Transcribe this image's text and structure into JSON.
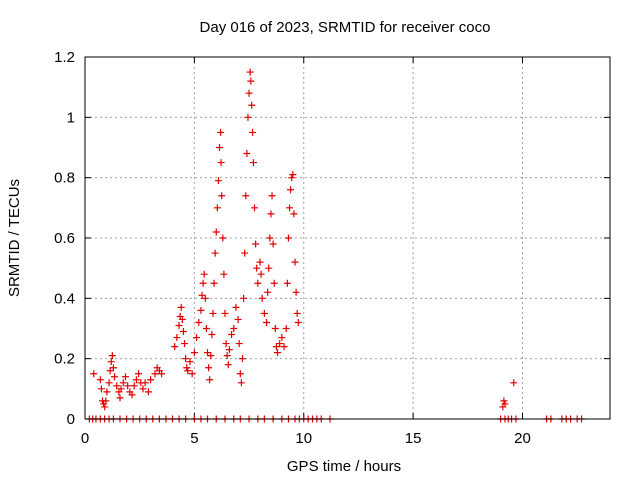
{
  "chart_data": {
    "type": "scatter",
    "title": "Day 016 of 2023, SRMTID for receiver coco",
    "xlabel": "GPS time / hours",
    "ylabel": "SRMTID / TECUs",
    "xlim": [
      0,
      24
    ],
    "ylim": [
      0,
      1.2
    ],
    "xticks": [
      0,
      5,
      10,
      15,
      20
    ],
    "xtick_labels": [
      "0",
      "5",
      "10",
      "15",
      "20"
    ],
    "yticks": [
      0,
      0.2,
      0.4,
      0.6,
      0.8,
      1.0,
      1.2
    ],
    "ytick_labels": [
      "0",
      "0.2",
      "0.4",
      "0.6",
      "0.8",
      "1",
      "1.2"
    ],
    "grid": true,
    "marker": "+",
    "color": "#e00000",
    "series": [
      {
        "name": "SRMTID",
        "points": [
          [
            0.2,
            0
          ],
          [
            0.35,
            0
          ],
          [
            0.5,
            0
          ],
          [
            0.7,
            0
          ],
          [
            0.9,
            0
          ],
          [
            1.1,
            0
          ],
          [
            1.3,
            0
          ],
          [
            1.6,
            0
          ],
          [
            1.9,
            0
          ],
          [
            2.2,
            0
          ],
          [
            2.5,
            0
          ],
          [
            2.8,
            0
          ],
          [
            3.1,
            0
          ],
          [
            3.4,
            0
          ],
          [
            3.7,
            0
          ],
          [
            4.0,
            0
          ],
          [
            4.3,
            0
          ],
          [
            4.6,
            0
          ],
          [
            5.0,
            0
          ],
          [
            5.3,
            0
          ],
          [
            5.6,
            0
          ],
          [
            6.0,
            0
          ],
          [
            6.4,
            0
          ],
          [
            6.8,
            0
          ],
          [
            7.1,
            0
          ],
          [
            7.5,
            0
          ],
          [
            7.9,
            0
          ],
          [
            8.2,
            0
          ],
          [
            8.6,
            0
          ],
          [
            9.0,
            0
          ],
          [
            9.3,
            0
          ],
          [
            9.6,
            0
          ],
          [
            9.8,
            0
          ],
          [
            10.0,
            0
          ],
          [
            10.2,
            0
          ],
          [
            10.4,
            0
          ],
          [
            10.6,
            0
          ],
          [
            10.8,
            0
          ],
          [
            11.2,
            0
          ],
          [
            19.0,
            0
          ],
          [
            19.2,
            0
          ],
          [
            19.35,
            0
          ],
          [
            19.5,
            0
          ],
          [
            19.7,
            0
          ],
          [
            21.1,
            0
          ],
          [
            21.3,
            0
          ],
          [
            21.8,
            0
          ],
          [
            22.0,
            0
          ],
          [
            22.2,
            0
          ],
          [
            22.5,
            0
          ],
          [
            22.7,
            0
          ],
          [
            0.4,
            0.15
          ],
          [
            0.7,
            0.13
          ],
          [
            0.75,
            0.1
          ],
          [
            0.8,
            0.06
          ],
          [
            0.85,
            0.05
          ],
          [
            0.9,
            0.04
          ],
          [
            0.95,
            0.06
          ],
          [
            1.0,
            0.09
          ],
          [
            1.1,
            0.12
          ],
          [
            1.15,
            0.16
          ],
          [
            1.2,
            0.19
          ],
          [
            1.25,
            0.21
          ],
          [
            1.3,
            0.17
          ],
          [
            1.35,
            0.14
          ],
          [
            1.45,
            0.11
          ],
          [
            1.55,
            0.09
          ],
          [
            1.6,
            0.07
          ],
          [
            1.65,
            0.1
          ],
          [
            1.75,
            0.12
          ],
          [
            1.85,
            0.14
          ],
          [
            1.95,
            0.11
          ],
          [
            2.05,
            0.09
          ],
          [
            2.15,
            0.08
          ],
          [
            2.25,
            0.11
          ],
          [
            2.35,
            0.13
          ],
          [
            2.45,
            0.15
          ],
          [
            2.55,
            0.12
          ],
          [
            2.65,
            0.1
          ],
          [
            2.75,
            0.12
          ],
          [
            2.9,
            0.09
          ],
          [
            3.0,
            0.13
          ],
          [
            3.2,
            0.15
          ],
          [
            3.3,
            0.17
          ],
          [
            3.4,
            0.16
          ],
          [
            3.5,
            0.15
          ],
          [
            4.1,
            0.24
          ],
          [
            4.2,
            0.27
          ],
          [
            4.3,
            0.31
          ],
          [
            4.35,
            0.34
          ],
          [
            4.4,
            0.37
          ],
          [
            4.45,
            0.33
          ],
          [
            4.5,
            0.29
          ],
          [
            4.55,
            0.25
          ],
          [
            4.6,
            0.2
          ],
          [
            4.65,
            0.17
          ],
          [
            4.7,
            0.16
          ],
          [
            4.8,
            0.19
          ],
          [
            4.9,
            0.15
          ],
          [
            5.0,
            0.22
          ],
          [
            5.1,
            0.27
          ],
          [
            5.2,
            0.32
          ],
          [
            5.3,
            0.36
          ],
          [
            5.35,
            0.41
          ],
          [
            5.4,
            0.45
          ],
          [
            5.45,
            0.48
          ],
          [
            5.5,
            0.4
          ],
          [
            5.55,
            0.3
          ],
          [
            5.6,
            0.22
          ],
          [
            5.65,
            0.17
          ],
          [
            5.7,
            0.13
          ],
          [
            5.75,
            0.21
          ],
          [
            5.8,
            0.28
          ],
          [
            5.85,
            0.35
          ],
          [
            5.9,
            0.45
          ],
          [
            5.95,
            0.55
          ],
          [
            6.0,
            0.62
          ],
          [
            6.05,
            0.7
          ],
          [
            6.1,
            0.79
          ],
          [
            6.15,
            0.9
          ],
          [
            6.2,
            0.95
          ],
          [
            6.22,
            0.85
          ],
          [
            6.25,
            0.74
          ],
          [
            6.3,
            0.6
          ],
          [
            6.35,
            0.48
          ],
          [
            6.4,
            0.35
          ],
          [
            6.45,
            0.25
          ],
          [
            6.5,
            0.21
          ],
          [
            6.55,
            0.18
          ],
          [
            6.6,
            0.23
          ],
          [
            6.7,
            0.28
          ],
          [
            6.8,
            0.3
          ],
          [
            6.9,
            0.37
          ],
          [
            7.0,
            0.33
          ],
          [
            7.05,
            0.25
          ],
          [
            7.1,
            0.15
          ],
          [
            7.15,
            0.12
          ],
          [
            7.2,
            0.2
          ],
          [
            7.25,
            0.4
          ],
          [
            7.3,
            0.55
          ],
          [
            7.35,
            0.74
          ],
          [
            7.4,
            0.88
          ],
          [
            7.45,
            1.0
          ],
          [
            7.5,
            1.08
          ],
          [
            7.55,
            1.15
          ],
          [
            7.58,
            1.12
          ],
          [
            7.62,
            1.04
          ],
          [
            7.66,
            0.95
          ],
          [
            7.7,
            0.85
          ],
          [
            7.75,
            0.7
          ],
          [
            7.8,
            0.58
          ],
          [
            7.85,
            0.5
          ],
          [
            7.9,
            0.45
          ],
          [
            8.0,
            0.52
          ],
          [
            8.05,
            0.48
          ],
          [
            8.1,
            0.4
          ],
          [
            8.2,
            0.35
          ],
          [
            8.3,
            0.32
          ],
          [
            8.35,
            0.42
          ],
          [
            8.4,
            0.5
          ],
          [
            8.45,
            0.6
          ],
          [
            8.5,
            0.68
          ],
          [
            8.55,
            0.74
          ],
          [
            8.6,
            0.58
          ],
          [
            8.65,
            0.45
          ],
          [
            8.7,
            0.3
          ],
          [
            8.75,
            0.24
          ],
          [
            8.8,
            0.22
          ],
          [
            8.9,
            0.25
          ],
          [
            9.0,
            0.27
          ],
          [
            9.1,
            0.24
          ],
          [
            9.2,
            0.3
          ],
          [
            9.25,
            0.45
          ],
          [
            9.3,
            0.6
          ],
          [
            9.35,
            0.7
          ],
          [
            9.4,
            0.76
          ],
          [
            9.45,
            0.8
          ],
          [
            9.5,
            0.81
          ],
          [
            9.55,
            0.68
          ],
          [
            9.6,
            0.52
          ],
          [
            9.65,
            0.42
          ],
          [
            9.7,
            0.35
          ],
          [
            9.75,
            0.32
          ],
          [
            19.1,
            0.04
          ],
          [
            19.15,
            0.06
          ],
          [
            19.2,
            0.05
          ],
          [
            19.6,
            0.12
          ]
        ]
      }
    ]
  }
}
